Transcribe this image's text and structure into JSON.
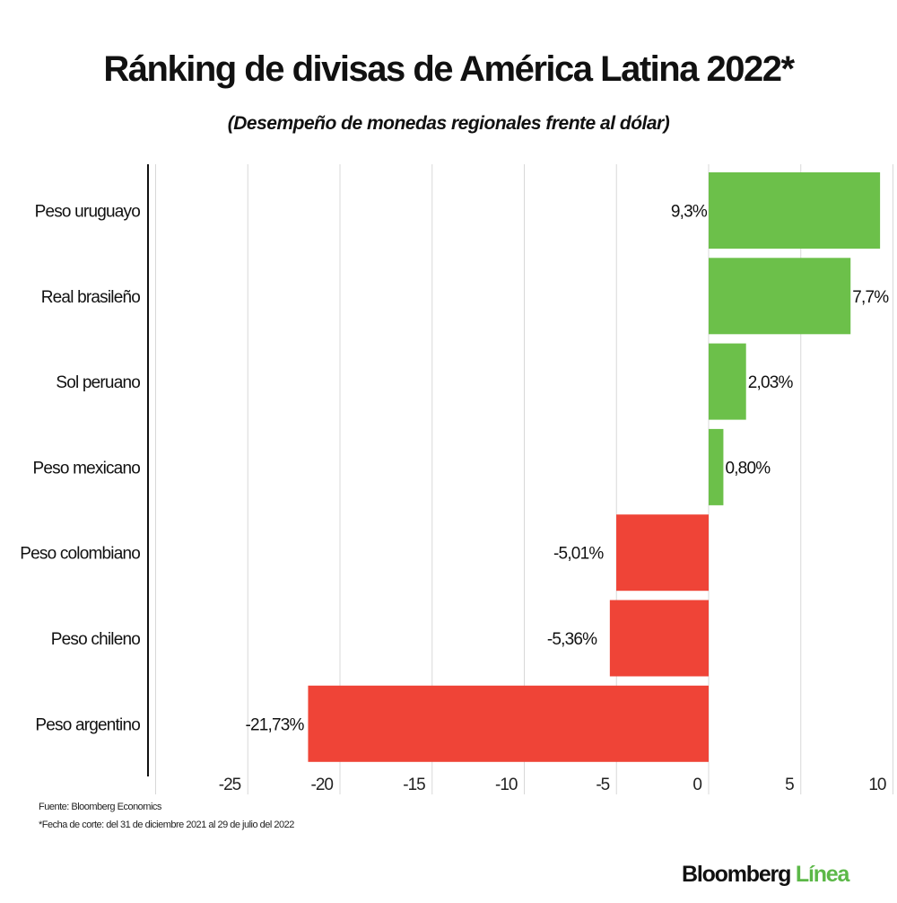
{
  "chart_data": {
    "type": "bar",
    "orientation": "horizontal",
    "title": "Ránking de divisas de América Latina 2022*",
    "subtitle": "(Desempeño de monedas regionales frente al dólar)",
    "categories": [
      "Peso uruguayo",
      "Real brasileño",
      "Sol peruano",
      "Peso mexicano",
      "Peso colombiano",
      "Peso chileno",
      "Peso argentino"
    ],
    "values": [
      9.3,
      7.7,
      2.03,
      0.8,
      -5.01,
      -5.36,
      -21.73
    ],
    "data_labels": [
      "9,3%",
      "7,7%",
      "2,03%",
      "0,80%",
      "-5,01%",
      "-5,36%",
      "-21,73%"
    ],
    "xlim": [
      -30,
      10
    ],
    "xticks": [
      -25,
      -20,
      -15,
      -10,
      -5,
      0,
      5,
      10
    ],
    "grid": true,
    "colors": {
      "positive": "#6cc04a",
      "negative": "#ef4437"
    }
  },
  "footer": {
    "source": "Fuente: Bloomberg Economics",
    "note": "*Fecha de corte: del 31 de diciembre 2021 al 29 de julio del 2022"
  },
  "logo": {
    "part1": "Bloomberg",
    "part2": "Línea"
  }
}
